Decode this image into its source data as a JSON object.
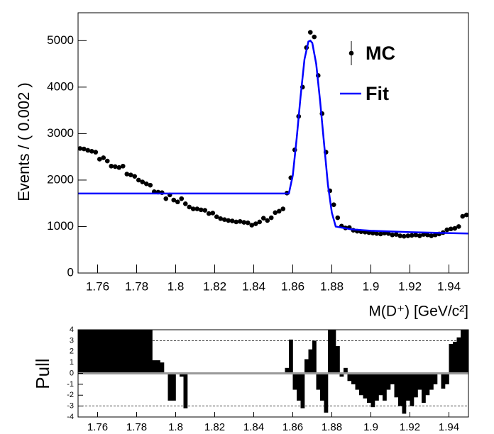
{
  "chart_data": [
    {
      "type": "scatter",
      "ylabel": "Events / ( 0.002 )",
      "xlabel": "M(D⁺) [GeV/c²]",
      "xlim": [
        1.75,
        1.95
      ],
      "ylim": [
        0,
        5600
      ],
      "xticks": [
        1.76,
        1.78,
        1.8,
        1.82,
        1.84,
        1.86,
        1.88,
        1.9,
        1.92,
        1.94
      ],
      "yticks": [
        0,
        1000,
        2000,
        3000,
        4000,
        5000
      ],
      "legend": "upper right",
      "series": [
        {
          "name": "MC",
          "color": "#000000",
          "mark": "point",
          "x": [
            1.751,
            1.753,
            1.755,
            1.757,
            1.759,
            1.761,
            1.763,
            1.765,
            1.767,
            1.769,
            1.771,
            1.773,
            1.775,
            1.777,
            1.779,
            1.781,
            1.783,
            1.785,
            1.787,
            1.789,
            1.791,
            1.793,
            1.795,
            1.797,
            1.799,
            1.801,
            1.803,
            1.805,
            1.807,
            1.809,
            1.811,
            1.813,
            1.815,
            1.817,
            1.819,
            1.821,
            1.823,
            1.825,
            1.827,
            1.829,
            1.831,
            1.833,
            1.835,
            1.837,
            1.839,
            1.841,
            1.843,
            1.845,
            1.847,
            1.849,
            1.851,
            1.853,
            1.855,
            1.857,
            1.859,
            1.861,
            1.863,
            1.865,
            1.867,
            1.869,
            1.871,
            1.873,
            1.875,
            1.877,
            1.879,
            1.881,
            1.883,
            1.885,
            1.887,
            1.889,
            1.891,
            1.893,
            1.895,
            1.897,
            1.899,
            1.901,
            1.903,
            1.905,
            1.907,
            1.909,
            1.911,
            1.913,
            1.915,
            1.917,
            1.919,
            1.921,
            1.923,
            1.925,
            1.927,
            1.929,
            1.931,
            1.933,
            1.935,
            1.937,
            1.939,
            1.941,
            1.943,
            1.945,
            1.947,
            1.949
          ],
          "values": [
            2680,
            2670,
            2640,
            2620,
            2600,
            2450,
            2480,
            2410,
            2300,
            2290,
            2270,
            2300,
            2130,
            2110,
            2080,
            2000,
            1960,
            1920,
            1890,
            1750,
            1740,
            1730,
            1600,
            1680,
            1570,
            1530,
            1600,
            1490,
            1420,
            1380,
            1380,
            1360,
            1350,
            1280,
            1290,
            1210,
            1170,
            1150,
            1130,
            1120,
            1100,
            1110,
            1090,
            1080,
            1030,
            1060,
            1100,
            1180,
            1130,
            1190,
            1300,
            1330,
            1380,
            1720,
            2050,
            2650,
            3370,
            4000,
            4850,
            5180,
            5080,
            4250,
            3430,
            2600,
            1770,
            1470,
            1190,
            1010,
            970,
            980,
            920,
            900,
            890,
            880,
            870,
            860,
            850,
            840,
            860,
            850,
            820,
            830,
            800,
            790,
            800,
            810,
            820,
            800,
            830,
            820,
            800,
            820,
            840,
            870,
            930,
            950,
            960,
            1000,
            1220,
            1250
          ]
        },
        {
          "name": "Fit",
          "color": "#0000ff",
          "mark": "line",
          "x": [
            1.75,
            1.858,
            1.86,
            1.862,
            1.864,
            1.866,
            1.868,
            1.869,
            1.87,
            1.872,
            1.874,
            1.876,
            1.878,
            1.88,
            1.882,
            1.89,
            1.9,
            1.92,
            1.95
          ],
          "values": [
            1710,
            1710,
            2100,
            2900,
            3800,
            4600,
            4980,
            5000,
            4950,
            4500,
            3700,
            2800,
            1900,
            1300,
            1000,
            940,
            910,
            880,
            850
          ]
        }
      ]
    },
    {
      "type": "bar",
      "ylabel": "Pull",
      "xlim": [
        1.75,
        1.95
      ],
      "ylim": [
        -4,
        4
      ],
      "xticks": [
        1.76,
        1.78,
        1.8,
        1.82,
        1.84,
        1.86,
        1.88,
        1.9,
        1.92,
        1.94
      ],
      "yticks": [
        -4,
        -3,
        -2,
        -1,
        0,
        1,
        2,
        3,
        4
      ],
      "ref_lines": [
        -3,
        0,
        3
      ],
      "color": "#000000",
      "bin_width": 0.002,
      "x": [
        1.751,
        1.753,
        1.755,
        1.757,
        1.759,
        1.761,
        1.763,
        1.765,
        1.767,
        1.769,
        1.771,
        1.773,
        1.775,
        1.777,
        1.779,
        1.781,
        1.783,
        1.785,
        1.787,
        1.789,
        1.791,
        1.793,
        1.795,
        1.797,
        1.799,
        1.801,
        1.803,
        1.805,
        1.807,
        1.809,
        1.811,
        1.813,
        1.815,
        1.817,
        1.819,
        1.821,
        1.823,
        1.825,
        1.827,
        1.829,
        1.831,
        1.833,
        1.835,
        1.837,
        1.839,
        1.841,
        1.843,
        1.845,
        1.847,
        1.849,
        1.851,
        1.853,
        1.855,
        1.857,
        1.859,
        1.861,
        1.863,
        1.865,
        1.867,
        1.869,
        1.871,
        1.873,
        1.875,
        1.877,
        1.879,
        1.881,
        1.883,
        1.885,
        1.887,
        1.889,
        1.891,
        1.893,
        1.895,
        1.897,
        1.899,
        1.901,
        1.903,
        1.905,
        1.907,
        1.909,
        1.911,
        1.913,
        1.915,
        1.917,
        1.919,
        1.921,
        1.923,
        1.925,
        1.927,
        1.929,
        1.931,
        1.933,
        1.935,
        1.937,
        1.939,
        1.941,
        1.943,
        1.945,
        1.947,
        1.949
      ],
      "values": [
        4,
        4,
        4,
        4,
        4,
        4,
        4,
        4,
        4,
        4,
        4,
        4,
        4,
        4,
        4,
        4,
        4,
        4,
        4,
        1.2,
        1.2,
        1.0,
        0,
        -2.5,
        -2.5,
        0,
        -0.3,
        -3.2,
        0,
        0,
        0,
        0,
        0,
        0,
        0,
        0,
        0,
        0,
        0,
        0,
        0,
        0,
        0,
        0,
        0,
        0,
        0,
        0,
        0,
        0,
        0,
        0,
        0,
        0.5,
        3.1,
        -1.5,
        -2.5,
        -3.2,
        1.3,
        2.2,
        3.0,
        -1.5,
        -2.5,
        -3.6,
        4,
        4,
        2.5,
        -0.3,
        0.5,
        -0.7,
        -1.0,
        -1.5,
        -2.0,
        -2.3,
        -2.7,
        -3.1,
        -2.5,
        -2.0,
        -2.5,
        -1.5,
        -1.0,
        -2.2,
        -3.0,
        -3.7,
        -2.5,
        -3.0,
        -2.2,
        -1.5,
        -2.7,
        -2.0,
        -1.5,
        -1.0,
        0,
        -1.4,
        -1.0,
        2.7,
        2.9,
        3.3,
        4,
        4
      ]
    }
  ]
}
